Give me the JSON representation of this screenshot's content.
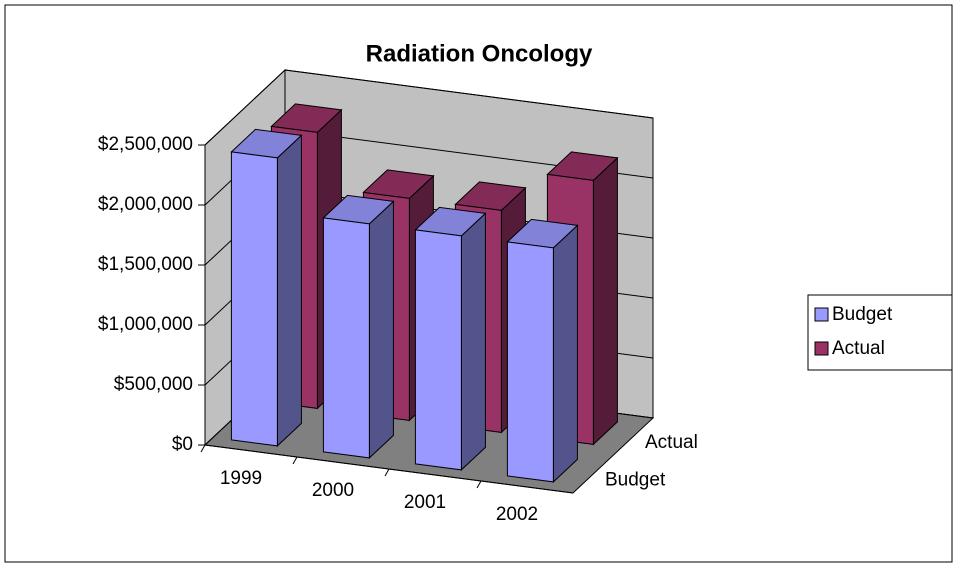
{
  "chart_data": {
    "type": "bar",
    "title": "Radiation Oncology",
    "categories": [
      "1999",
      "2000",
      "2001",
      "2002"
    ],
    "series": [
      {
        "name": "Budget",
        "color": "#9999ff",
        "values": [
          2400000,
          1950000,
          1950000,
          1950000
        ]
      },
      {
        "name": "Actual",
        "color": "#993366",
        "values": [
          2300000,
          1850000,
          1850000,
          2200000
        ]
      }
    ],
    "ylim": [
      0,
      2500000
    ],
    "yticks": [
      {
        "value": 0,
        "label": "$0"
      },
      {
        "value": 500000,
        "label": "$500,000"
      },
      {
        "value": 1000000,
        "label": "$1,000,000"
      },
      {
        "value": 1500000,
        "label": "$1,500,000"
      },
      {
        "value": 2000000,
        "label": "$2,000,000"
      },
      {
        "value": 2500000,
        "label": "$2,500,000"
      }
    ],
    "grid": true,
    "legend": "right"
  }
}
